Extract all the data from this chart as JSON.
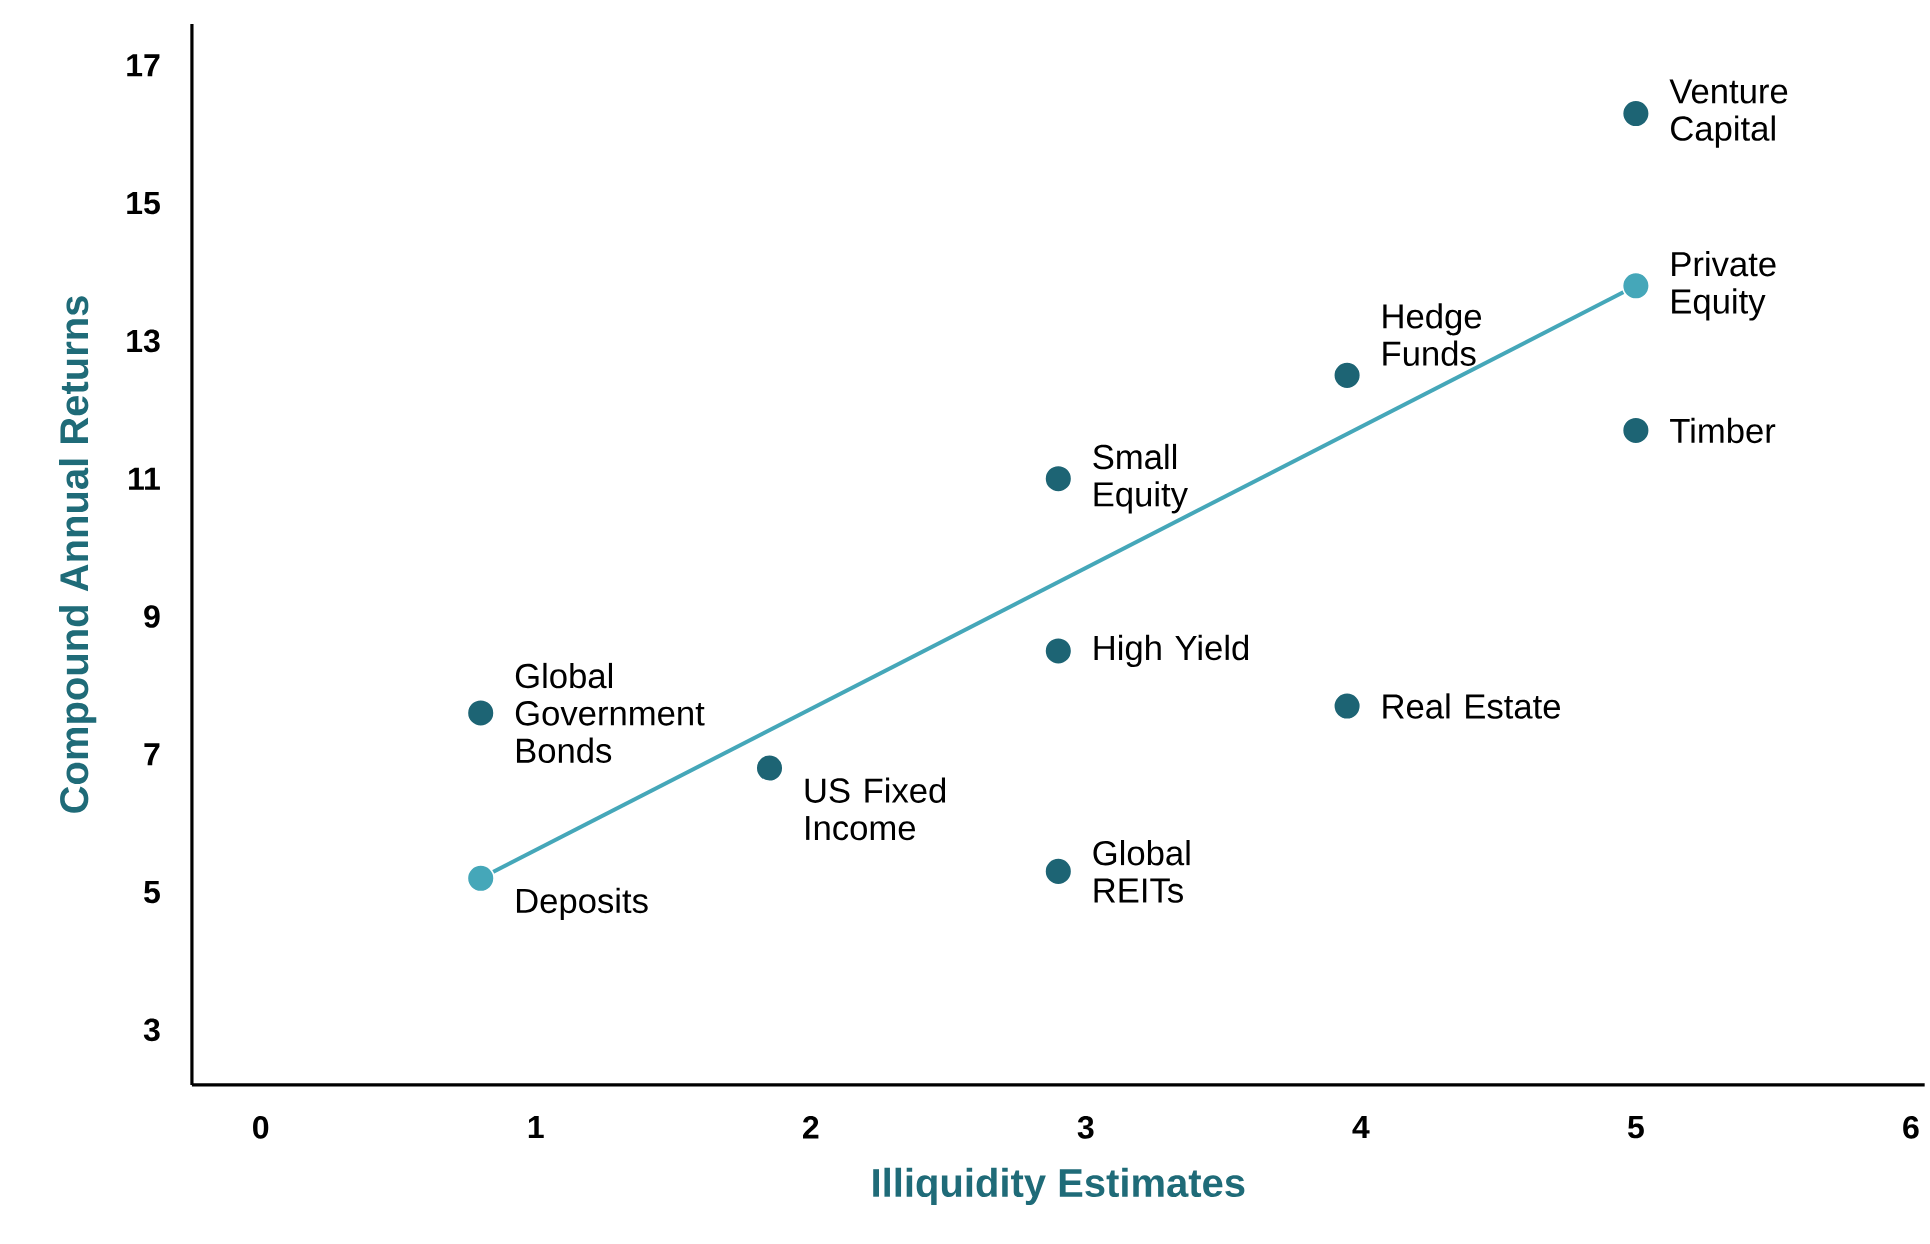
{
  "chart_data": {
    "type": "scatter",
    "xlabel": "Illiquidity Estimates",
    "ylabel": "Compound Annual Returns",
    "xlim": [
      -0.25,
      6.05
    ],
    "ylim": [
      2.2,
      17.6
    ],
    "xticks": [
      0,
      1,
      2,
      3,
      4,
      5,
      6
    ],
    "yticks": [
      3,
      5,
      7,
      9,
      11,
      13,
      15,
      17
    ],
    "series": [
      {
        "type": "line",
        "color": "#45a7b9",
        "x": [
          0.8,
          5.0
        ],
        "values": [
          5.2,
          13.8
        ]
      },
      {
        "marker": "circle",
        "x": [
          0.8,
          0.8,
          1.85,
          2.9,
          2.9,
          2.9,
          3.95,
          3.95,
          5.0,
          5.0,
          5.0
        ],
        "values": [
          5.2,
          7.6,
          6.8,
          11.0,
          8.5,
          5.3,
          12.5,
          7.7,
          16.3,
          13.8,
          11.7
        ],
        "colors": [
          "#45a7b9",
          "#1d6474",
          "#1d6474",
          "#1d6474",
          "#1d6474",
          "#1d6474",
          "#1d6474",
          "#1d6474",
          "#1d6474",
          "#45a7b9",
          "#1d6474"
        ]
      }
    ],
    "annotations": [
      {
        "text": "Deposits",
        "x": 0.8,
        "y": 5.2
      },
      {
        "text": "Global Government Bonds",
        "x": 0.8,
        "y": 7.6
      },
      {
        "text": "US Fixed Income",
        "x": 1.85,
        "y": 6.8
      },
      {
        "text": "Small Equity",
        "x": 2.9,
        "y": 11.0
      },
      {
        "text": "High Yield",
        "x": 2.9,
        "y": 8.5
      },
      {
        "text": "Global REITs",
        "x": 2.9,
        "y": 5.3
      },
      {
        "text": "Hedge Funds",
        "x": 3.95,
        "y": 12.5
      },
      {
        "text": "Real Estate",
        "x": 3.95,
        "y": 7.7
      },
      {
        "text": "Venture Capital",
        "x": 5.0,
        "y": 16.3
      },
      {
        "text": "Private Equity",
        "x": 5.0,
        "y": 13.8
      },
      {
        "text": "Timber",
        "x": 5.0,
        "y": 11.7
      }
    ]
  }
}
